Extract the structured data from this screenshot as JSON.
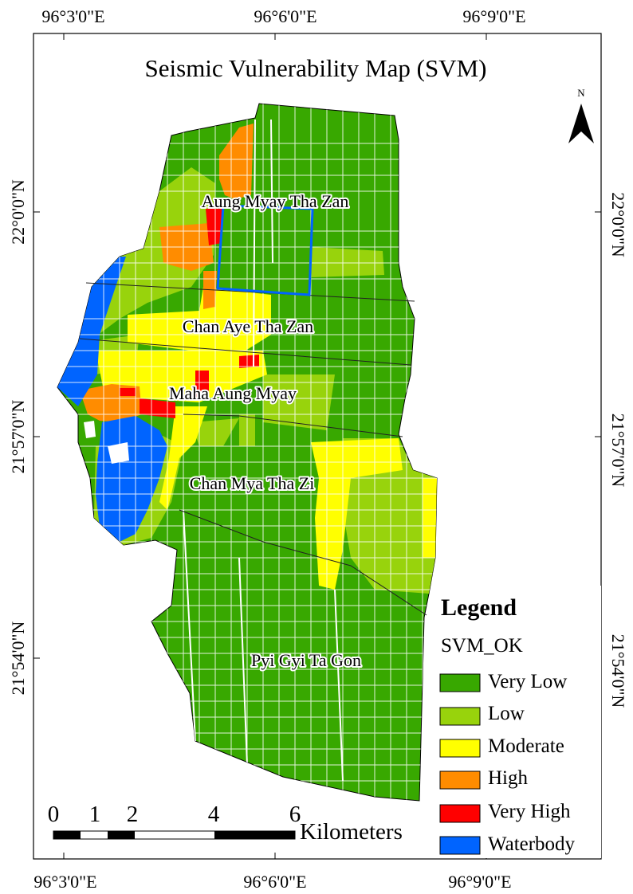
{
  "map": {
    "title": "Seismic Vulnerability Map (SVM)",
    "north_label": "N",
    "coords": {
      "top": [
        "96°3'0\"E",
        "96°6'0\"E",
        "96°9'0\"E"
      ],
      "bottom": [
        "96°3'0\"E",
        "96°6'0\"E",
        "96°9'0\"E"
      ],
      "left": [
        "22°0'0\"N",
        "21°57'0\"N",
        "21°54'0\"N"
      ],
      "right": [
        "22°0'0\"N",
        "21°57'0\"N",
        "21°54'0\"N"
      ]
    },
    "townships": [
      "Aung Myay Tha Zan",
      "Chan Aye Tha Zan",
      "Maha Aung Myay",
      "Chan Mya Tha Zi",
      "Pyi Gyi Ta Gon"
    ]
  },
  "legend": {
    "title": "Legend",
    "field": "SVM_OK",
    "items": [
      {
        "label": "Very Low",
        "color": "#38a800"
      },
      {
        "label": "Low",
        "color": "#98d30c"
      },
      {
        "label": "Moderate",
        "color": "#ffff00"
      },
      {
        "label": "High",
        "color": "#ff8c00"
      },
      {
        "label": "Very High",
        "color": "#ff0000"
      },
      {
        "label": "Waterbody",
        "color": "#0064ff"
      }
    ]
  },
  "scale_bar": {
    "ticks": [
      "0",
      "1",
      "2",
      "4",
      "6"
    ],
    "unit": "Kilometers"
  }
}
